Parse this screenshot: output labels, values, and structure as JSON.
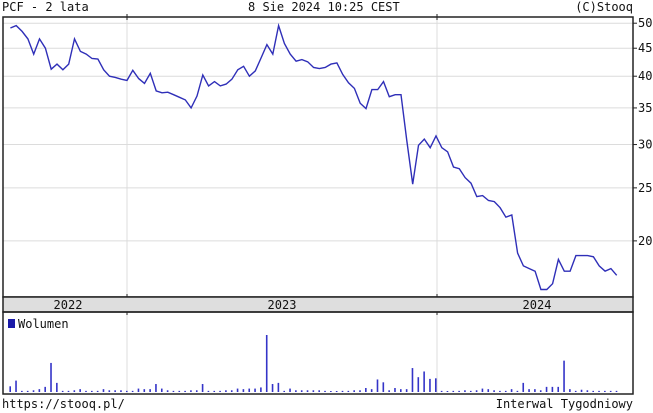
{
  "header": {
    "title": "PCF - 2 lata",
    "timestamp": "8 Sie 2024 10:25 CEST",
    "copyright": "(C)Stooq"
  },
  "footer": {
    "url": "https://stooq.pl/",
    "interval": "Interwal Tygodniowy"
  },
  "colors": {
    "line": "#2f2fb8",
    "volume": "#3434c8",
    "grid": "#dcdcdc",
    "year_bar": "#dedede"
  },
  "chart_data": [
    {
      "type": "line",
      "scale": "log",
      "ylim": [
        15.5,
        51
      ],
      "yticks": [
        50,
        45,
        40,
        35,
        30,
        25,
        20
      ],
      "ytick_labels": [
        "50",
        "45",
        "40",
        "35",
        "30",
        "25",
        "20"
      ],
      "x_labels": [
        "2022",
        "2023",
        "2024"
      ],
      "grid": true,
      "series": [
        {
          "values": [
            49.0,
            49.5,
            48.3,
            46.8,
            43.9,
            46.8,
            45.0,
            41.2,
            42.1,
            41.1,
            42.1,
            46.8,
            44.4,
            43.9,
            43.1,
            43.0,
            41.1,
            40.0,
            39.8,
            39.5,
            39.3,
            41.0,
            39.6,
            38.8,
            40.5,
            37.6,
            37.3,
            37.4,
            37.0,
            36.6,
            36.2,
            35.0,
            36.8,
            40.2,
            38.4,
            39.1,
            38.4,
            38.7,
            39.5,
            41.1,
            41.7,
            40.0,
            40.9,
            43.2,
            45.7,
            43.9,
            49.5,
            45.9,
            43.9,
            42.6,
            42.9,
            42.5,
            41.5,
            41.3,
            41.5,
            42.1,
            42.3,
            40.3,
            38.9,
            38.0,
            35.7,
            34.9,
            37.8,
            37.8,
            39.1,
            36.7,
            37.0,
            37.0,
            30.5,
            25.4,
            29.9,
            30.7,
            29.6,
            31.1,
            29.6,
            29.1,
            27.3,
            27.1,
            26.1,
            25.5,
            24.1,
            24.2,
            23.7,
            23.6,
            23.0,
            22.1,
            22.3,
            19.0,
            18.0,
            17.8,
            17.6,
            16.3,
            16.3,
            16.7,
            18.5,
            17.6,
            17.6,
            18.8,
            18.8,
            18.8,
            18.7,
            18.0,
            17.6,
            17.8,
            17.3
          ]
        }
      ]
    },
    {
      "type": "bar",
      "legend": "Wolumen",
      "legend_position": "top-left",
      "unit": "relative (max = 100)",
      "values": [
        10,
        20,
        2,
        2,
        3,
        5,
        9,
        51,
        16,
        2,
        2,
        3,
        5,
        2,
        2,
        2,
        5,
        3,
        3,
        3,
        2,
        2,
        6,
        5,
        5,
        14,
        6,
        3,
        2,
        2,
        2,
        3,
        3,
        14,
        2,
        2,
        2,
        3,
        3,
        6,
        5,
        6,
        6,
        8,
        100,
        14,
        16,
        2,
        6,
        3,
        3,
        3,
        3,
        3,
        2,
        1,
        1,
        2,
        2,
        3,
        3,
        7,
        5,
        22,
        17,
        3,
        7,
        5,
        5,
        42,
        26,
        36,
        23,
        24,
        2,
        1,
        2,
        2,
        3,
        2,
        3,
        6,
        5,
        3,
        2,
        2,
        5,
        2,
        16,
        5,
        5,
        3,
        9,
        9,
        9,
        55,
        5,
        2,
        4,
        3,
        2,
        2,
        2,
        2,
        2
      ]
    }
  ]
}
